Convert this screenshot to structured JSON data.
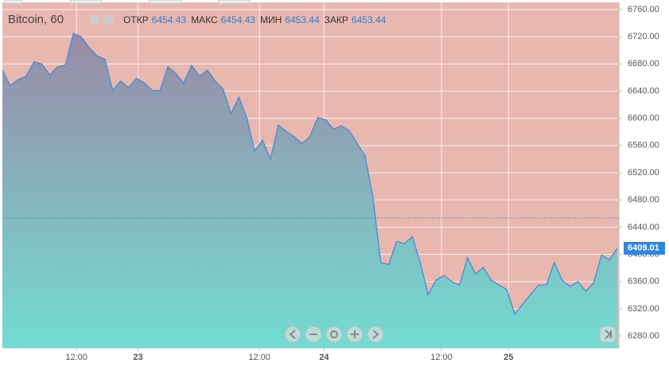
{
  "chart_data": {
    "type": "area",
    "title": "Bitcoin, 60",
    "ohlc": [
      {
        "label": "ОТКР",
        "value": 6454.43
      },
      {
        "label": "МАКС",
        "value": 6454.43
      },
      {
        "label": "МИН",
        "value": 6453.44
      },
      {
        "label": "ЗАКР",
        "value": 6453.44
      }
    ],
    "values": [
      6671,
      6648,
      6657,
      6662,
      6683,
      6680,
      6664,
      6676,
      6678,
      6725,
      6720,
      6704,
      6692,
      6687,
      6641,
      6655,
      6645,
      6659,
      6652,
      6641,
      6641,
      6676,
      6666,
      6652,
      6678,
      6662,
      6671,
      6655,
      6643,
      6607,
      6631,
      6601,
      6552,
      6568,
      6540,
      6590,
      6581,
      6573,
      6563,
      6573,
      6601,
      6598,
      6584,
      6589,
      6582,
      6563,
      6545,
      6484,
      6388,
      6385,
      6419,
      6416,
      6426,
      6388,
      6341,
      6362,
      6369,
      6360,
      6355,
      6395,
      6371,
      6381,
      6362,
      6355,
      6348,
      6312,
      6327,
      6341,
      6355,
      6355,
      6388,
      6362,
      6353,
      6360,
      6346,
      6358,
      6399,
      6392,
      6409.01
    ],
    "color": "#3b8fdc",
    "xlim": [
      0,
      78.2
    ],
    "xticks": [
      {
        "value": 9.4,
        "label": "12:00"
      },
      {
        "value": 17.2,
        "label": "23"
      },
      {
        "value": 32.6,
        "label": "12:00"
      },
      {
        "value": 40.8,
        "label": "24"
      },
      {
        "value": 55.7,
        "label": "12:00"
      },
      {
        "value": 64.2,
        "label": "25"
      }
    ],
    "ylim": [
      6262.5,
      6770.5
    ],
    "yticks": [
      {
        "value": 6280,
        "label": "6280.00"
      },
      {
        "value": 6320,
        "label": "6320.00"
      },
      {
        "value": 6360,
        "label": "6360.00"
      },
      {
        "value": 6400,
        "label": "6400.00"
      },
      {
        "value": 6440,
        "label": "6440.00"
      },
      {
        "value": 6480,
        "label": "6480.00"
      },
      {
        "value": 6520,
        "label": "6520.00"
      },
      {
        "value": 6560,
        "label": "6560.00"
      },
      {
        "value": 6600,
        "label": "6600.00"
      },
      {
        "value": 6640,
        "label": "6640.00"
      },
      {
        "value": 6680,
        "label": "6680.00"
      },
      {
        "value": 6720,
        "label": "6720.00"
      },
      {
        "value": 6760,
        "label": "6760.00"
      }
    ],
    "price_line": 6453.44,
    "last_price": 6409.01,
    "grid": true
  }
}
